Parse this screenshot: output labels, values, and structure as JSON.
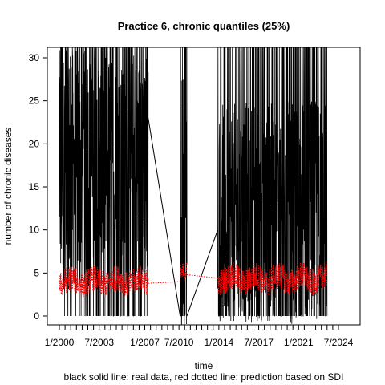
{
  "chart_data": {
    "type": "line",
    "title": "Practice 6, chronic quantiles (25%)",
    "xlabel": "time",
    "ylabel": "number of chronic diseases",
    "caption": "black solid line: real data, red dotted line: prediction based on SDI",
    "xlim": [
      2000.0,
      2024.6
    ],
    "ylim": [
      0,
      31
    ],
    "x_ticks": [
      2000.0,
      2003.5,
      2007.5,
      2010.5,
      2014.0,
      2017.5,
      2021.0,
      2024.5
    ],
    "x_tick_labels": [
      "1/2000",
      "7/2003",
      "1/2007",
      "7/2010",
      "1/2014",
      "7/2017",
      "1/2021",
      "7/2024"
    ],
    "y_ticks": [
      0,
      5,
      10,
      15,
      20,
      25,
      30
    ],
    "y_tick_labels": [
      "0",
      "5",
      "10",
      "15",
      "20",
      "25",
      "30"
    ],
    "grid": false,
    "series": [
      {
        "style": "solid",
        "color": "#000000",
        "segments": [
          {
            "x_range": [
              2000.0,
              2007.8
            ],
            "center": 17,
            "spread": 14
          },
          {
            "x_range": [
              2010.6,
              2011.2
            ],
            "center": 14,
            "spread": 16
          },
          {
            "x_range": [
              2013.9,
              2023.5
            ],
            "center": 12,
            "spread": 13
          }
        ],
        "bridges": [
          {
            "x": [
              2007.8,
              2010.6
            ],
            "y": [
              23,
              0
            ]
          },
          {
            "x": [
              2011.2,
              2013.9
            ],
            "y": [
              0,
              10
            ]
          }
        ]
      },
      {
        "style": "dotted",
        "color": "#ff0000",
        "segments": [
          {
            "x_range": [
              2000.0,
              2007.8
            ],
            "center": 4.0,
            "spread": 1.5
          },
          {
            "x_range": [
              2010.6,
              2011.2
            ],
            "center": 4.8,
            "spread": 1.2
          },
          {
            "x_range": [
              2013.9,
              2023.5
            ],
            "center": 4.3,
            "spread": 1.6
          }
        ],
        "bridges": [
          {
            "x": [
              2007.8,
              2010.6
            ],
            "y": [
              3.8,
              4.0
            ]
          },
          {
            "x": [
              2011.2,
              2013.9
            ],
            "y": [
              4.8,
              4.4
            ]
          }
        ]
      }
    ]
  }
}
